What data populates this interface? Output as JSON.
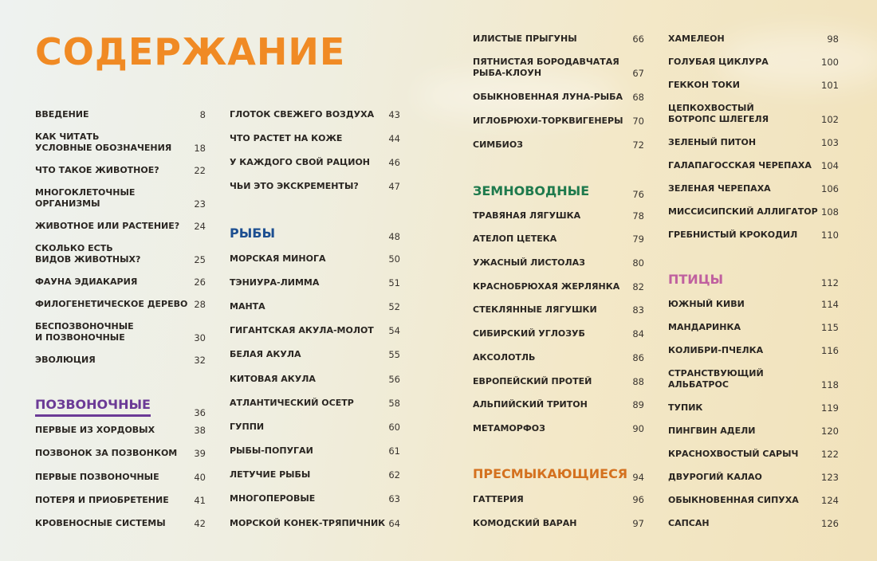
{
  "title": "СОДЕРЖАНИЕ",
  "colors": {
    "title": "#f08a24",
    "vertebrates": "#6b3a96",
    "fish": "#1d4f91",
    "amphibians": "#1f7a4d",
    "reptiles": "#d4711f",
    "birds": "#c0609f"
  },
  "columns": [
    {
      "items": [
        {
          "label": "Введение",
          "page": "8"
        },
        {
          "label": "Как читать\nусловные обозначения",
          "page": "18"
        },
        {
          "label": "Что такое животное?",
          "page": "22"
        },
        {
          "label": "Многоклеточные\nорганизмы",
          "page": "23"
        },
        {
          "label": "Животное или растение?",
          "page": "24"
        },
        {
          "label": "Сколько есть\nвидов животных?",
          "page": "25"
        },
        {
          "label": "Фауна эдиакария",
          "page": "26"
        },
        {
          "label": "Филогенетическое дерево",
          "page": "28"
        },
        {
          "label": "Беспозвоночные\nи позвоночные",
          "page": "30"
        },
        {
          "label": "Эволюция",
          "page": "32"
        },
        {
          "label": "Позвоночные",
          "page": "36",
          "section": "vertebrates"
        },
        {
          "label": "Первые из хордовых",
          "page": "38"
        },
        {
          "label": "Позвонок за позвонком",
          "page": "39"
        },
        {
          "label": "Первые позвоночные",
          "page": "40"
        },
        {
          "label": "Потеря и приобретение",
          "page": "41"
        },
        {
          "label": "Кровеносные системы",
          "page": "42"
        }
      ]
    },
    {
      "items": [
        {
          "label": "Глоток свежего воздуха",
          "page": "43"
        },
        {
          "label": "Что растет на коже",
          "page": "44"
        },
        {
          "label": "У каждого свой рацион",
          "page": "46"
        },
        {
          "label": "Чьи это экскременты?",
          "page": "47"
        },
        {
          "label": "Рыбы",
          "page": "48",
          "section": "fish"
        },
        {
          "label": "Морская минога",
          "page": "50"
        },
        {
          "label": "Тэниура-лимма",
          "page": "51"
        },
        {
          "label": "Манта",
          "page": "52"
        },
        {
          "label": "Гигантская акула-молот",
          "page": "54"
        },
        {
          "label": "Белая акула",
          "page": "55"
        },
        {
          "label": "Китовая акула",
          "page": "56"
        },
        {
          "label": "Атлантический осетр",
          "page": "58"
        },
        {
          "label": "Гуппи",
          "page": "60"
        },
        {
          "label": "Рыбы-попугаи",
          "page": "61"
        },
        {
          "label": "Летучие рыбы",
          "page": "62"
        },
        {
          "label": "Многоперовые",
          "page": "63"
        },
        {
          "label": "Морской конек-тряпичник",
          "page": "64"
        }
      ]
    },
    {
      "items": [
        {
          "label": "Илистые прыгуны",
          "page": "66"
        },
        {
          "label": "Пятнистая бородавчатая\nрыба-клоун",
          "page": "67"
        },
        {
          "label": "Обыкновенная луна-рыба",
          "page": "68"
        },
        {
          "label": "Иглобрюхи-торквигенеры",
          "page": "70"
        },
        {
          "label": "Симбиоз",
          "page": "72"
        },
        {
          "label": "Земноводные",
          "page": "76",
          "section": "amphibians"
        },
        {
          "label": "Травяная лягушка",
          "page": "78"
        },
        {
          "label": "Ателоп цетека",
          "page": "79"
        },
        {
          "label": "Ужасный листолаз",
          "page": "80"
        },
        {
          "label": "Краснобрюхая жерлянка",
          "page": "82"
        },
        {
          "label": "Стеклянные лягушки",
          "page": "83"
        },
        {
          "label": "Сибирский углозуб",
          "page": "84"
        },
        {
          "label": "Аксолотль",
          "page": "86"
        },
        {
          "label": "Европейский протей",
          "page": "88"
        },
        {
          "label": "Альпийский тритон",
          "page": "89"
        },
        {
          "label": "Метаморфоз",
          "page": "90"
        },
        {
          "label": "Пресмыкающиеся",
          "page": "94",
          "section": "reptiles"
        },
        {
          "label": "Гаттерия",
          "page": "96"
        },
        {
          "label": "Комодский варан",
          "page": "97"
        }
      ]
    },
    {
      "items": [
        {
          "label": "Хамелеон",
          "page": "98"
        },
        {
          "label": "Голубая циклура",
          "page": "100"
        },
        {
          "label": "Геккон токи",
          "page": "101"
        },
        {
          "label": "Цепкохвостый\nботропс Шлегеля",
          "page": "102"
        },
        {
          "label": "Зеленый питон",
          "page": "103"
        },
        {
          "label": "Галапагосская черепаха",
          "page": "104"
        },
        {
          "label": "Зеленая черепаха",
          "page": "106"
        },
        {
          "label": "Миссисипский аллигатор",
          "page": "108"
        },
        {
          "label": "Гребнистый крокодил",
          "page": "110"
        },
        {
          "label": "Птицы",
          "page": "112",
          "section": "birds"
        },
        {
          "label": "Южный киви",
          "page": "114"
        },
        {
          "label": "Мандаринка",
          "page": "115"
        },
        {
          "label": "Колибри-пчелка",
          "page": "116"
        },
        {
          "label": "Странствующий\nальбатрос",
          "page": "118"
        },
        {
          "label": "Тупик",
          "page": "119"
        },
        {
          "label": "Пингвин Адели",
          "page": "120"
        },
        {
          "label": "Краснохвостый сарыч",
          "page": "122"
        },
        {
          "label": "Двурогий калао",
          "page": "123"
        },
        {
          "label": "Обыкновенная сипуха",
          "page": "124"
        },
        {
          "label": "Сапсан",
          "page": "126"
        }
      ]
    }
  ]
}
